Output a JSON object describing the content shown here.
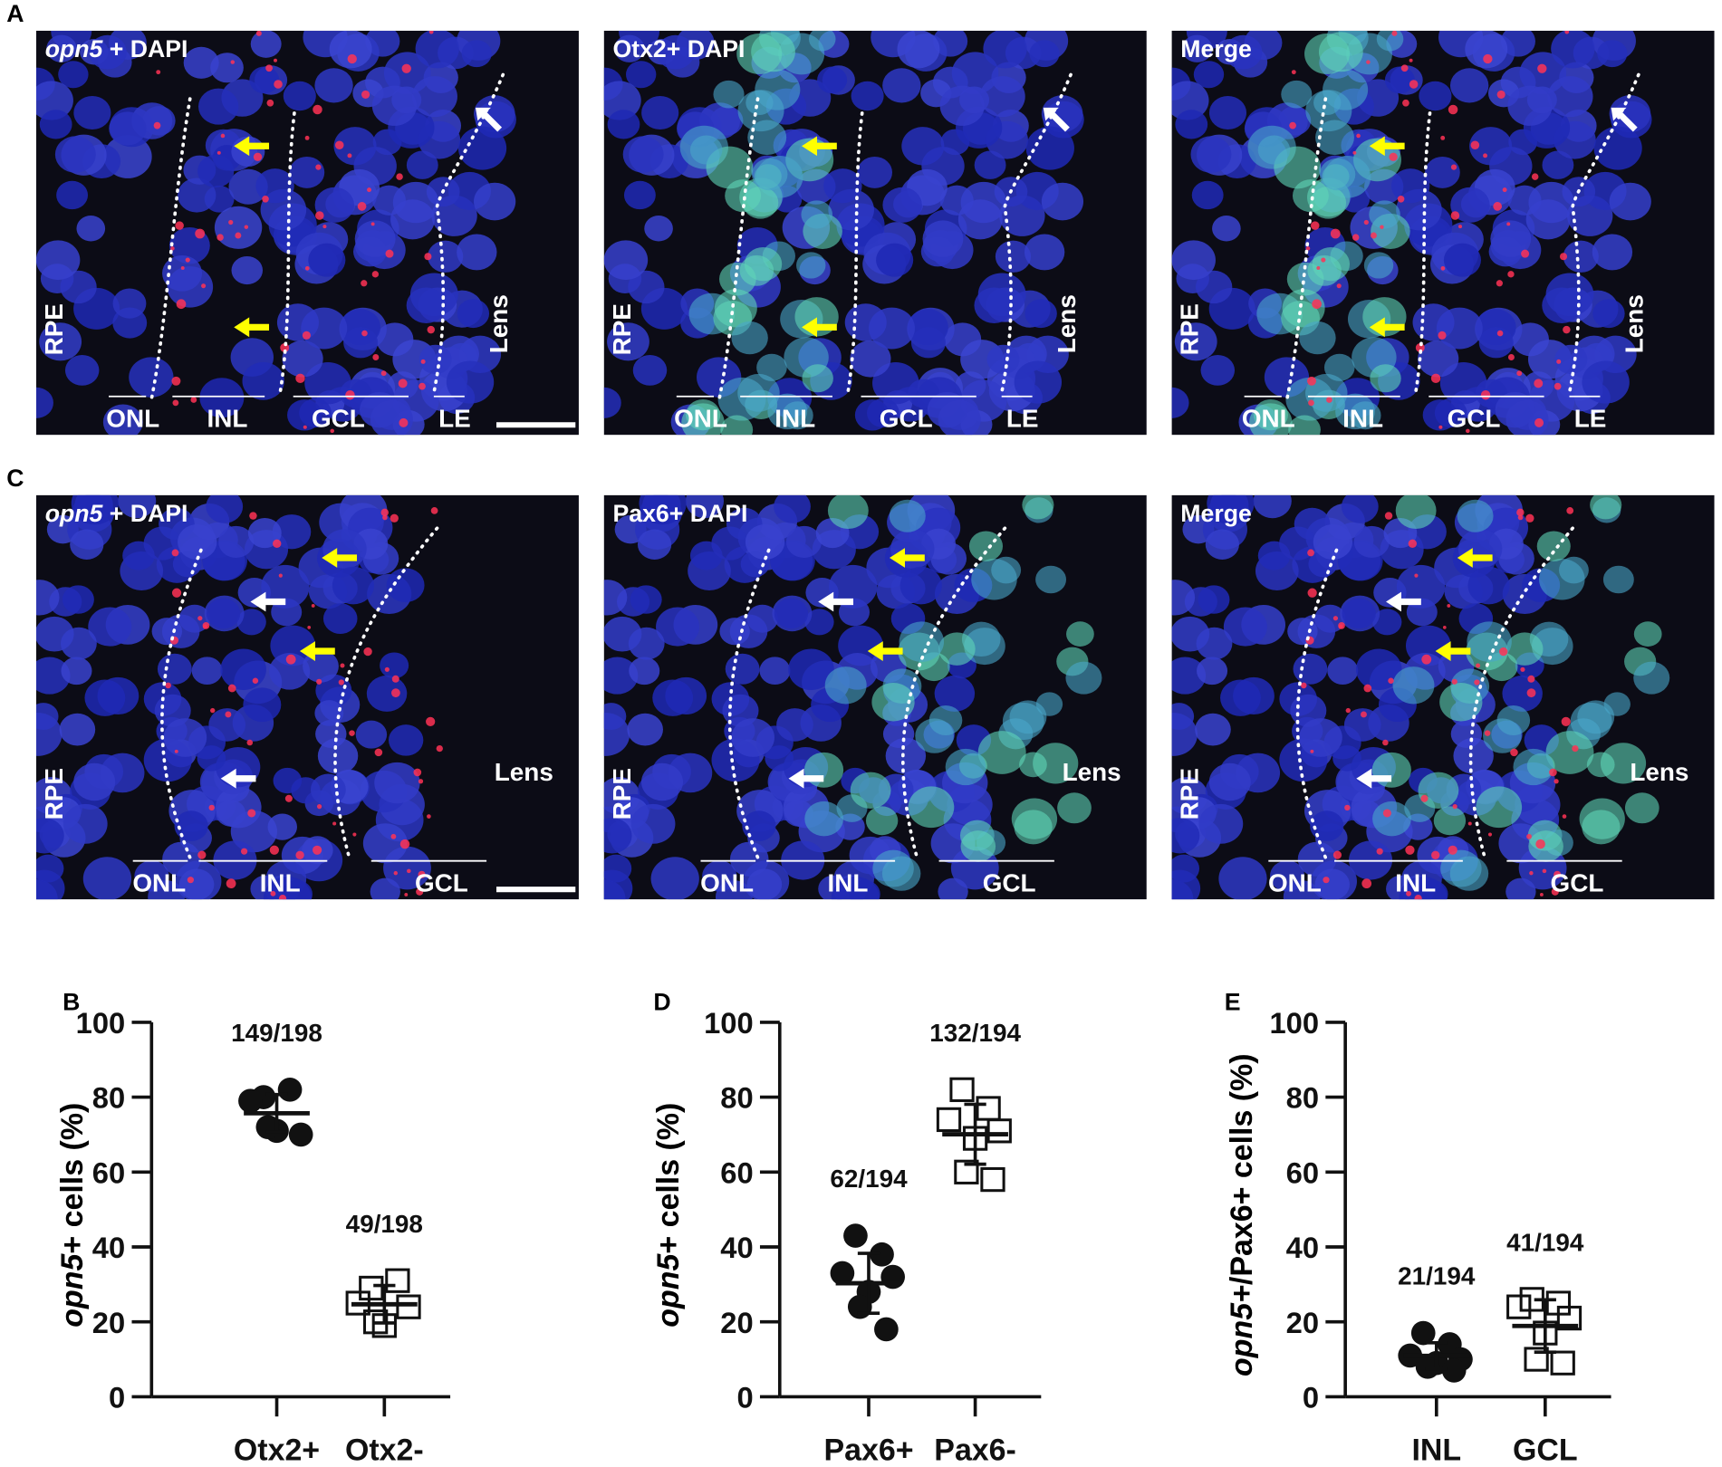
{
  "figure": {
    "rows": [
      {
        "letter": "A",
        "images": [
          {
            "title": [
              {
                "text": "opn5",
                "italic": true
              },
              {
                "text": " + DAPI"
              }
            ],
            "layers": [
              "ONL",
              "INL",
              "GCL",
              "LE"
            ],
            "left": "RPE",
            "right": "Lens"
          },
          {
            "title": [
              {
                "text": "Otx2+ DAPI"
              }
            ],
            "layers": [
              "ONL",
              "INL",
              "GCL",
              "LE"
            ],
            "left": "RPE",
            "right": "Lens"
          },
          {
            "title": [
              {
                "text": "Merge"
              }
            ],
            "layers": [
              "ONL",
              "INL",
              "GCL",
              "LE"
            ],
            "left": "RPE",
            "right": "Lens"
          }
        ]
      },
      {
        "letter": "C",
        "images": [
          {
            "title": [
              {
                "text": "opn5",
                "italic": true
              },
              {
                "text": " + DAPI"
              }
            ],
            "layers": [
              "ONL",
              "INL",
              "GCL"
            ],
            "left": "RPE",
            "right": "Lens"
          },
          {
            "title": [
              {
                "text": "Pax6+ DAPI"
              }
            ],
            "layers": [
              "ONL",
              "INL",
              "GCL"
            ],
            "left": "RPE",
            "right": "Lens"
          },
          {
            "title": [
              {
                "text": "Merge"
              }
            ],
            "layers": [
              "ONL",
              "INL",
              "GCL"
            ],
            "left": "RPE",
            "right": "Lens"
          }
        ]
      }
    ]
  },
  "chart_data": [
    {
      "type": "scatter",
      "panel": "B",
      "ylabel": [
        {
          "text": "opn5",
          "italic": true
        },
        {
          "text": "+ cells (%)"
        }
      ],
      "ylim": [
        0,
        100
      ],
      "yticks": [
        0,
        20,
        40,
        60,
        80,
        100
      ],
      "groups": [
        {
          "name": "Otx2+",
          "marker": "filled-circle",
          "values": [
            80,
            82,
            79,
            70,
            71,
            72
          ],
          "mean": 75.7,
          "sd": 5,
          "annotation": "149/198"
        },
        {
          "name": "Otx2-",
          "marker": "open-square",
          "values": [
            29,
            31,
            25,
            24,
            19,
            20
          ],
          "mean": 24.7,
          "sd": 5,
          "annotation": "49/198"
        }
      ]
    },
    {
      "type": "scatter",
      "panel": "D",
      "ylabel": [
        {
          "text": "opn5",
          "italic": true
        },
        {
          "text": "+ cells (%)"
        }
      ],
      "ylim": [
        0,
        100
      ],
      "yticks": [
        0,
        20,
        40,
        60,
        80,
        100
      ],
      "groups": [
        {
          "name": "Pax6+",
          "marker": "filled-circle",
          "values": [
            43,
            38,
            33,
            32,
            28,
            24,
            18
          ],
          "mean": 30.3,
          "sd": 8,
          "annotation": "62/194"
        },
        {
          "name": "Pax6-",
          "marker": "open-square",
          "values": [
            82,
            77,
            74,
            71,
            69,
            60,
            58
          ],
          "mean": 70.1,
          "sd": 8,
          "annotation": "132/194"
        }
      ]
    },
    {
      "type": "scatter",
      "panel": "E",
      "ylabel": [
        {
          "text": "opn5+",
          "italic": true
        },
        {
          "text": "/Pax6+ cells (%)"
        }
      ],
      "ylim": [
        0,
        100
      ],
      "yticks": [
        0,
        20,
        40,
        60,
        80,
        100
      ],
      "groups": [
        {
          "name": "INL",
          "marker": "filled-circle",
          "values": [
            17,
            14,
            11,
            10,
            9,
            8,
            7
          ],
          "mean": 10.9,
          "sd": 3.5,
          "annotation": "21/194"
        },
        {
          "name": "GCL",
          "marker": "open-square",
          "values": [
            26,
            25,
            24,
            21,
            17,
            10,
            9
          ],
          "mean": 18.9,
          "sd": 7,
          "annotation": "41/194"
        }
      ]
    }
  ]
}
